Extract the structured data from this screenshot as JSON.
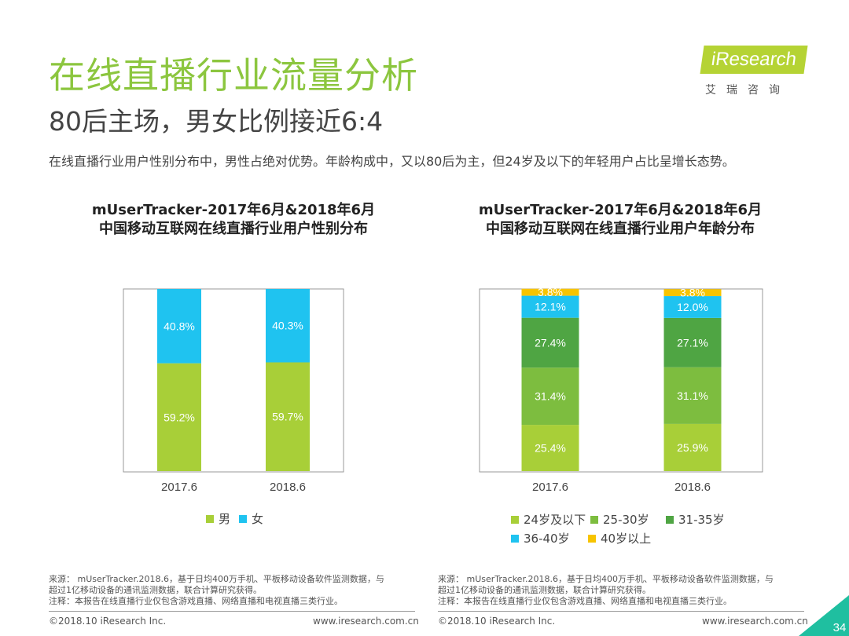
{
  "header": {
    "title": "在线直播行业流量分析",
    "subtitle": "80后主场，男女比例接近6:4",
    "summary": "在线直播行业用户性别分布中，男性占绝对优势。年龄构成中，又以80后为主，但24岁及以下的年轻用户占比呈增长态势。"
  },
  "logo": {
    "brand": "iResearch",
    "cn": "艾瑞咨询"
  },
  "charts": {
    "left": {
      "title_line1": "mUserTracker-2017年6月&2018年6月",
      "title_line2": "中国移动互联网在线直播行业用户性别分布"
    },
    "right": {
      "title_line1": "mUserTracker-2017年6月&2018年6月",
      "title_line2": "中国移动互联网在线直播行业用户年龄分布"
    }
  },
  "chart_data": [
    {
      "type": "bar",
      "stacked": true,
      "percent": true,
      "title": "中国移动互联网在线直播行业用户性别分布",
      "categories": [
        "2017.6",
        "2018.6"
      ],
      "series": [
        {
          "name": "男",
          "color": "#a8cf38",
          "values": [
            59.2,
            59.7
          ]
        },
        {
          "name": "女",
          "color": "#1fc3f0",
          "values": [
            40.8,
            40.3
          ]
        }
      ],
      "ylim": [
        0,
        100
      ],
      "legend": "bottom"
    },
    {
      "type": "bar",
      "stacked": true,
      "percent": true,
      "title": "中国移动互联网在线直播行业用户年龄分布",
      "categories": [
        "2017.6",
        "2018.6"
      ],
      "series": [
        {
          "name": "24岁及以下",
          "color": "#a8cf38",
          "values": [
            25.4,
            25.9
          ]
        },
        {
          "name": "25-30岁",
          "color": "#7dbd3f",
          "values": [
            31.4,
            31.1
          ]
        },
        {
          "name": "31-35岁",
          "color": "#4fa543",
          "values": [
            27.4,
            27.1
          ]
        },
        {
          "name": "36-40岁",
          "color": "#1fc3f0",
          "values": [
            12.1,
            12.0
          ]
        },
        {
          "name": "40岁以上",
          "color": "#f7c400",
          "values": [
            3.8,
            3.8
          ]
        }
      ],
      "ylim": [
        0,
        100
      ],
      "legend": "bottom"
    }
  ],
  "notes": {
    "left": [
      "来源： mUserTracker.2018.6，基于日均400万手机、平板移动设备软件监测数据，与",
      "超过1亿移动设备的通讯监测数据，联合计算研究获得。",
      "注释：本报告在线直播行业仅包含游戏直播、网络直播和电视直播三类行业。"
    ],
    "right": [
      "来源： mUserTracker.2018.6，基于日均400万手机、平板移动设备软件监测数据，与",
      "超过1亿移动设备的通讯监测数据，联合计算研究获得。",
      "注释：本报告在线直播行业仅包含游戏直播、网络直播和电视直播三类行业。"
    ]
  },
  "footer": {
    "left_copyright": "©2018.10 iResearch Inc.",
    "left_url": "www.iresearch.com.cn",
    "right_copyright": "©2018.10 iResearch Inc.",
    "right_url": "www.iresearch.com.cn",
    "page_number": "34"
  },
  "colors": {
    "title_green": "#8cc63f",
    "logo_green": "#b5d334",
    "badge_green": "#1fbfa0"
  }
}
